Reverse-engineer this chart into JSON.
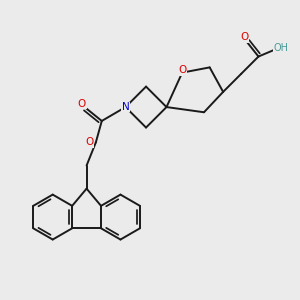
{
  "background_color": "#ebebeb",
  "atom_colors": {
    "O": "#e00000",
    "N": "#0000cc",
    "H": "#4a9999",
    "C": "#1a1a1a"
  },
  "bond_color": "#1a1a1a",
  "bond_width": 1.4
}
